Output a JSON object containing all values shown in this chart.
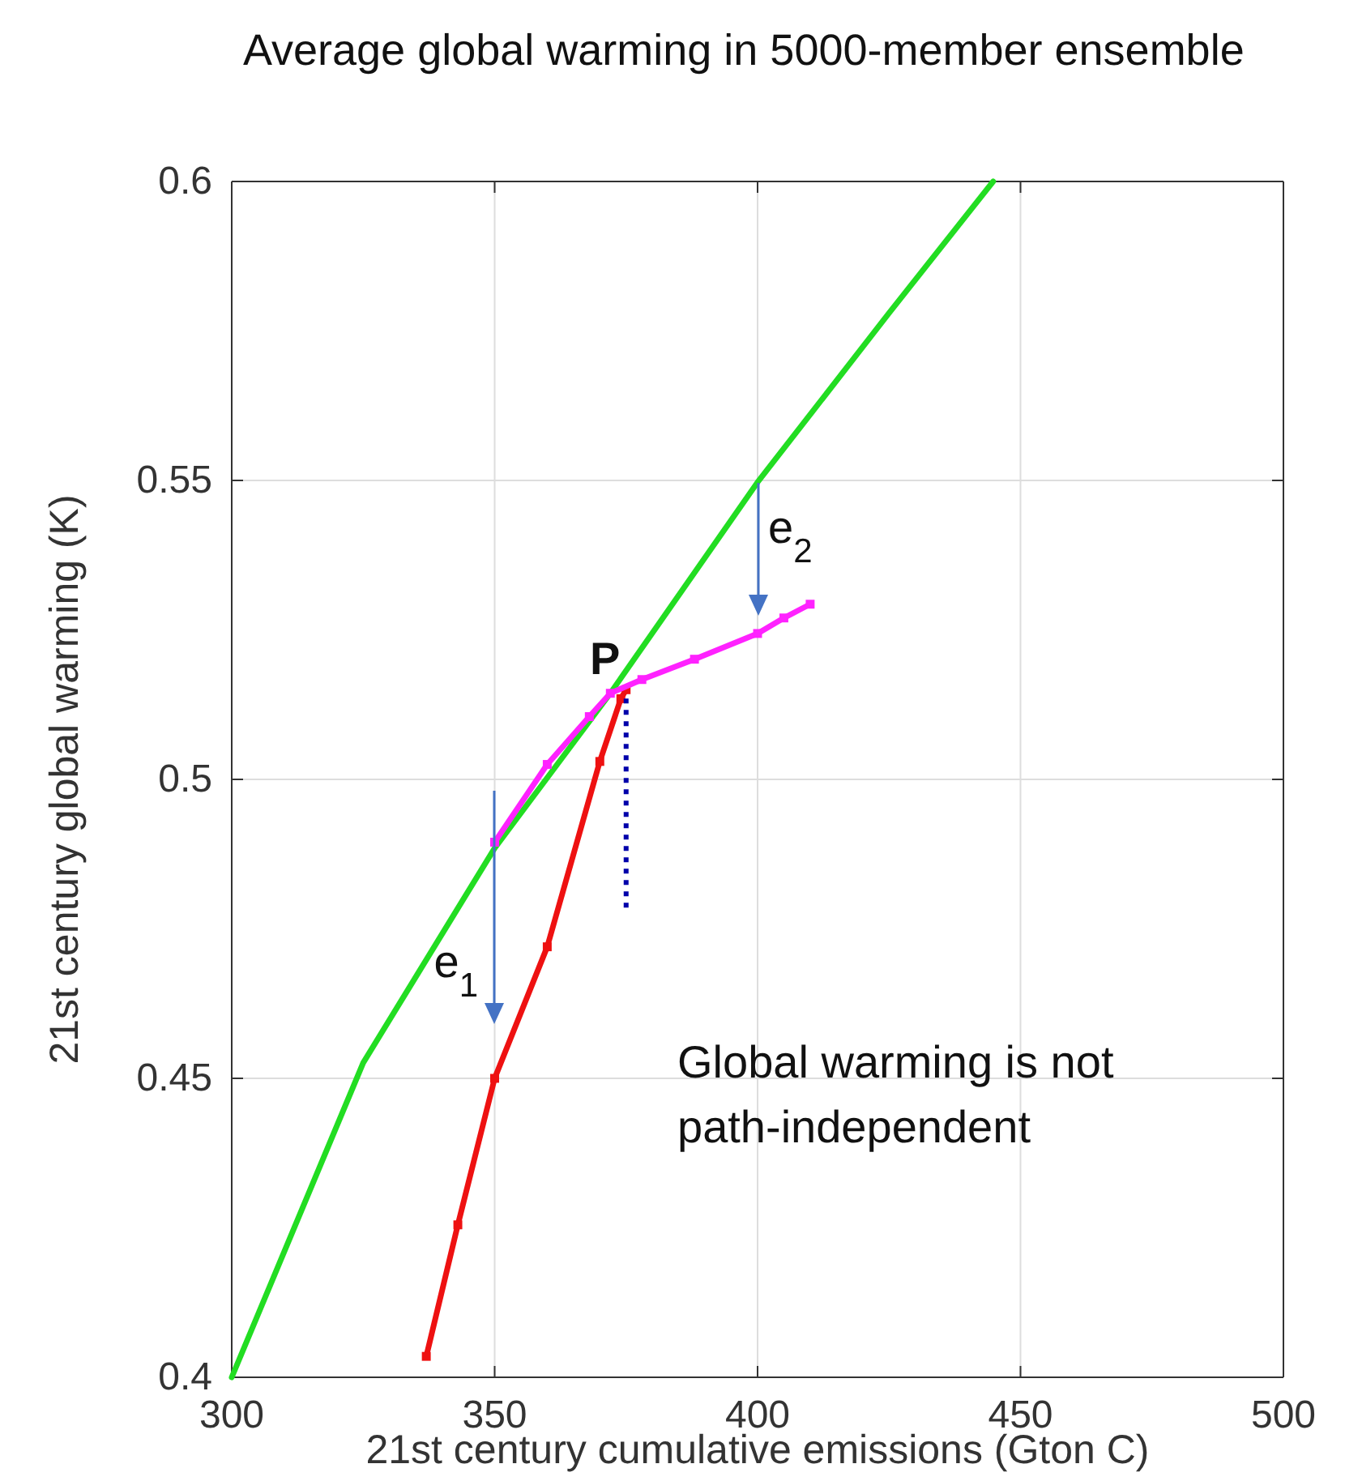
{
  "chart_data": {
    "type": "line",
    "title": "Average global warming in 5000-member ensemble",
    "xlabel": "21st century cumulative emissions (Gton C)",
    "ylabel": "21st century global warming (K)",
    "xlim": [
      300,
      500
    ],
    "xticks": [
      300,
      350,
      400,
      450,
      500
    ],
    "ylim": [
      0.4,
      0.6
    ],
    "yticks": [
      0.4,
      0.45,
      0.5,
      0.55,
      0.6
    ],
    "grid": true,
    "series": [
      {
        "color": "#22dd22",
        "x": [
          300,
          325,
          350,
          372,
          400,
          425,
          444.8
        ],
        "values": [
          0.4,
          0.4526,
          0.4885,
          0.5144,
          0.5497,
          0.578,
          0.6
        ],
        "marker": "none",
        "line_style": "solid"
      },
      {
        "color": "#ee1111",
        "x": [
          337,
          343,
          350,
          360,
          370,
          374,
          375
        ],
        "values": [
          0.4035,
          0.4255,
          0.45,
          0.472,
          0.503,
          0.5135,
          0.515
        ],
        "marker": "square",
        "line_style": "solid"
      },
      {
        "color": "#ff22ff",
        "x": [
          350,
          360,
          368,
          372,
          378,
          388,
          400,
          405,
          410
        ],
        "values": [
          0.4895,
          0.5025,
          0.5105,
          0.5144,
          0.5167,
          0.5201,
          0.5244,
          0.527,
          0.5293
        ],
        "marker": "square",
        "line_style": "solid"
      },
      {
        "color": "#0000aa",
        "x": [
          375,
          375
        ],
        "values": [
          0.5135,
          0.4776
        ],
        "marker": "none",
        "line_style": "dotted"
      }
    ],
    "annotations": [
      "e$_{1}$",
      "e$_{2}$",
      {
        "text": "P",
        "x": 372,
        "y": 0.5144
      },
      "Global warming is not path-independent"
    ]
  }
}
